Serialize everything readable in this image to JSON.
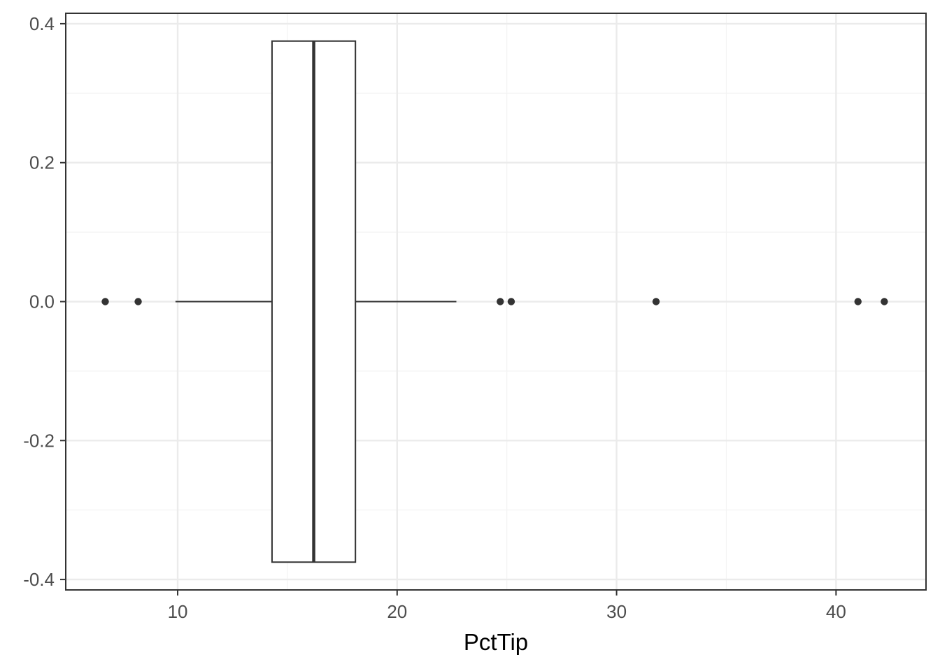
{
  "chart_data": {
    "type": "boxplot",
    "title": "",
    "xlabel": "PctTip",
    "ylabel": "",
    "orientation": "horizontal",
    "xlim": [
      4.9,
      44.1
    ],
    "ylim": [
      -0.415,
      0.415
    ],
    "x_ticks": [
      10,
      20,
      30,
      40
    ],
    "x_tick_labels": [
      "10",
      "20",
      "30",
      "40"
    ],
    "x_minor_ticks": [
      15,
      25,
      35
    ],
    "y_ticks": [
      0.4,
      0.2,
      0.0,
      -0.2,
      -0.4
    ],
    "y_tick_labels": [
      "0.4",
      "0.2",
      "0.0",
      "-0.2",
      "-0.4"
    ],
    "y_minor_ticks": [
      0.3,
      0.1,
      -0.1,
      -0.3
    ],
    "grid": true,
    "box": {
      "y_center": 0.0,
      "half_height": 0.375,
      "whisker_low": 9.9,
      "q1": 14.3,
      "median": 16.2,
      "q3": 18.1,
      "whisker_high": 22.7
    },
    "outliers": [
      6.7,
      8.2,
      24.7,
      25.2,
      31.8,
      41.0,
      42.2
    ],
    "colors": {
      "panel_border": "#333333",
      "grid_major": "#ebebeb",
      "grid_minor": "#f3f3f3",
      "box_line": "#333333",
      "box_fill": "#ffffff",
      "outlier": "#333333",
      "tick_mark": "#333333"
    }
  }
}
